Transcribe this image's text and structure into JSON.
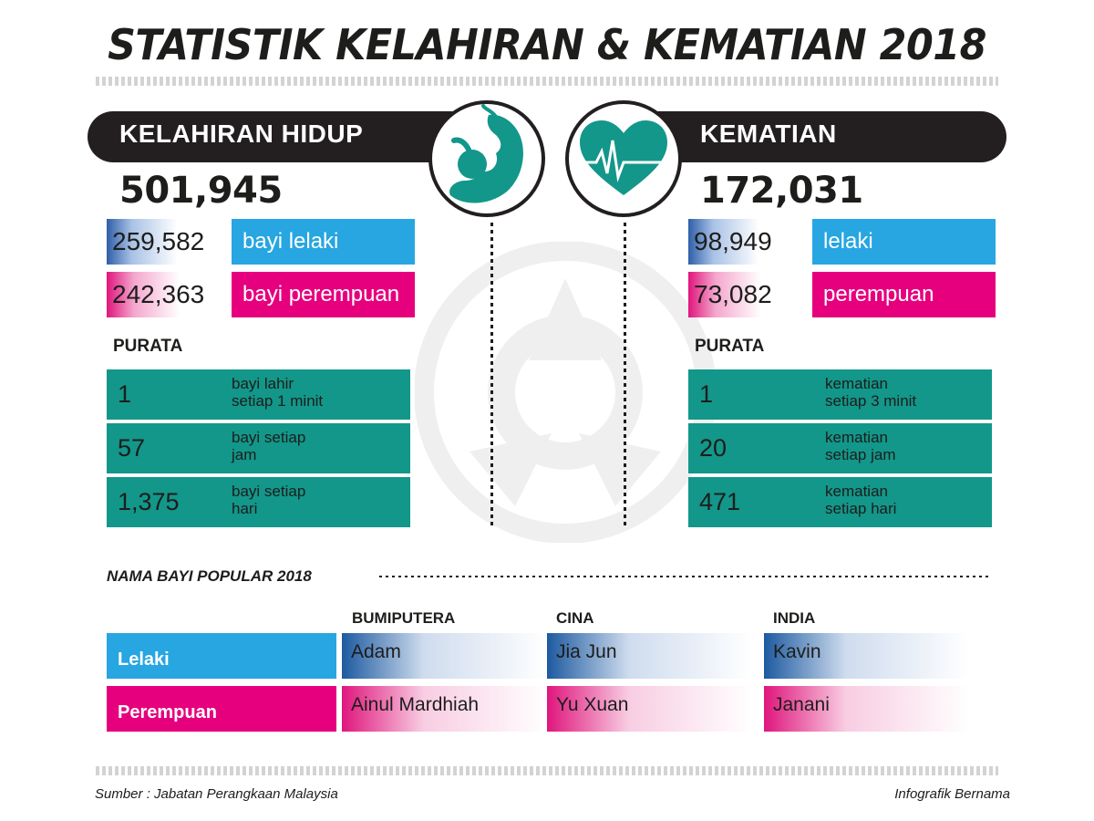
{
  "title": "STATISTIK KELAHIRAN & KEMATIAN 2018",
  "colors": {
    "teal": "#12978a",
    "blue": "#27a6e1",
    "pink": "#e6007e",
    "dark": "#231f20"
  },
  "births": {
    "header": "KELAHIRAN HIDUP",
    "icon": "fetus-icon",
    "total": "501,945",
    "male": {
      "value": "259,582",
      "label": "bayi lelaki"
    },
    "female": {
      "value": "242,363",
      "label": "bayi perempuan"
    },
    "average_heading": "PURATA",
    "averages": [
      {
        "value": "1",
        "line1": "bayi lahir",
        "line2": "setiap 1 minit"
      },
      {
        "value": "57",
        "line1": "bayi setiap",
        "line2": "jam"
      },
      {
        "value": "1,375",
        "line1": "bayi setiap",
        "line2": "hari"
      }
    ]
  },
  "deaths": {
    "header": "KEMATIAN",
    "icon": "heartbeat-icon",
    "total": "172,031",
    "male": {
      "value": "98,949",
      "label": "lelaki"
    },
    "female": {
      "value": "73,082",
      "label": "perempuan"
    },
    "average_heading": "PURATA",
    "averages": [
      {
        "value": "1",
        "line1": "kematian",
        "line2": "setiap 3 minit"
      },
      {
        "value": "20",
        "line1": "kematian",
        "line2": "setiap jam"
      },
      {
        "value": "471",
        "line1": "kematian",
        "line2": "setiap hari"
      }
    ]
  },
  "popular_names": {
    "title": "NAMA BAYI POPULAR 2018",
    "columns": [
      "BUMIPUTERA",
      "CINA",
      "INDIA"
    ],
    "rows": [
      {
        "label": "Lelaki",
        "names": [
          "Adam",
          "Jia Jun",
          "Kavin"
        ]
      },
      {
        "label": "Perempuan",
        "names": [
          "Ainul Mardhiah",
          "Yu Xuan",
          "Janani"
        ]
      }
    ]
  },
  "footer": {
    "source": "Sumber : Jabatan Perangkaan Malaysia",
    "credit": "Infografik Bernama"
  }
}
